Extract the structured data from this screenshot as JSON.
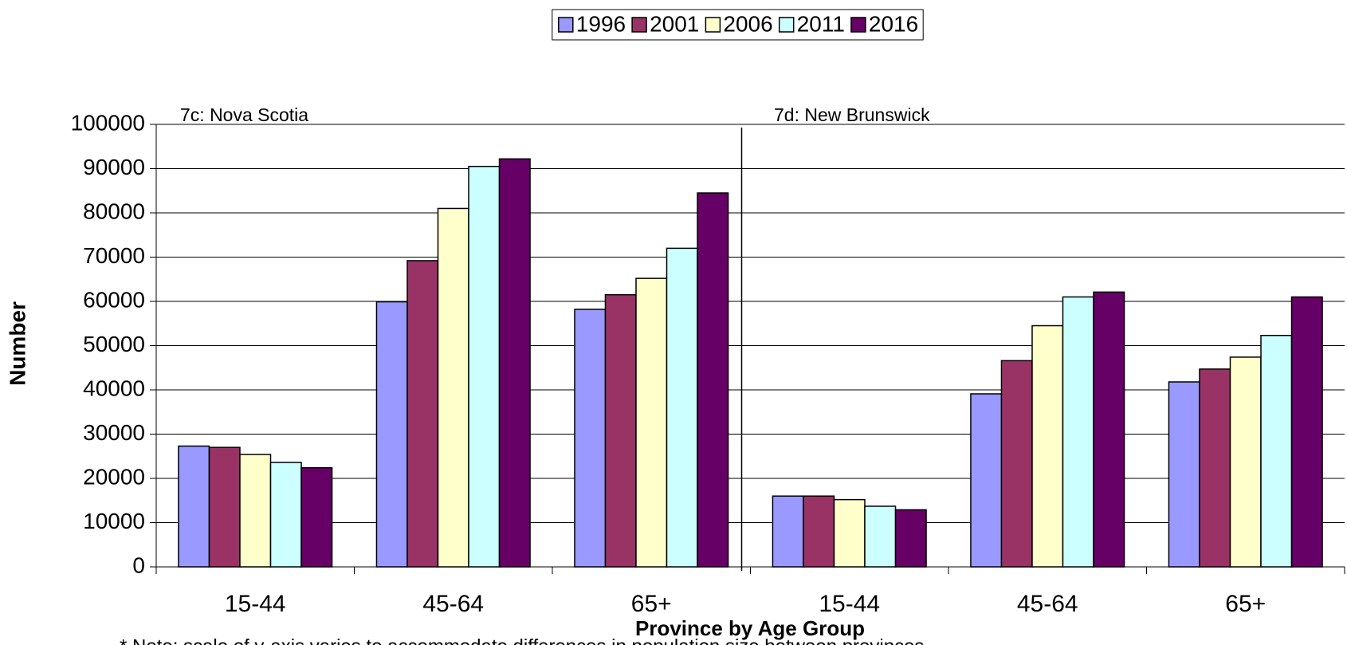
{
  "chart_data": {
    "type": "bar",
    "x_label": "Province by Age Group",
    "y_label": "Number",
    "annotations": [
      "7c: Nova Scotia",
      "7d: New Brunswick"
    ],
    "footnote": "* Note: scale of y-axis varies to accommodate differences in population size between provinces",
    "categories": [
      "15-44",
      "45-64",
      "65+",
      "15-44",
      "45-64",
      "65+"
    ],
    "series": [
      {
        "name": "1996",
        "color": "#9999ff",
        "values": [
          27300,
          59900,
          58200,
          16000,
          39100,
          41800
        ]
      },
      {
        "name": "2001",
        "color": "#993366",
        "values": [
          27000,
          69200,
          61500,
          16000,
          46600,
          44700
        ]
      },
      {
        "name": "2006",
        "color": "#ffffcc",
        "values": [
          25400,
          81000,
          65200,
          15200,
          54500,
          47400
        ]
      },
      {
        "name": "2011",
        "color": "#ccffff",
        "values": [
          23600,
          90500,
          72000,
          13700,
          61000,
          52300
        ]
      },
      {
        "name": "2016",
        "color": "#660066",
        "values": [
          22400,
          92200,
          84500,
          12900,
          62100,
          61000
        ]
      }
    ],
    "ylim": [
      0,
      100000
    ],
    "yticks": [
      0,
      10000,
      20000,
      30000,
      40000,
      50000,
      60000,
      70000,
      80000,
      90000,
      100000
    ],
    "grid": true,
    "legend": "top"
  }
}
